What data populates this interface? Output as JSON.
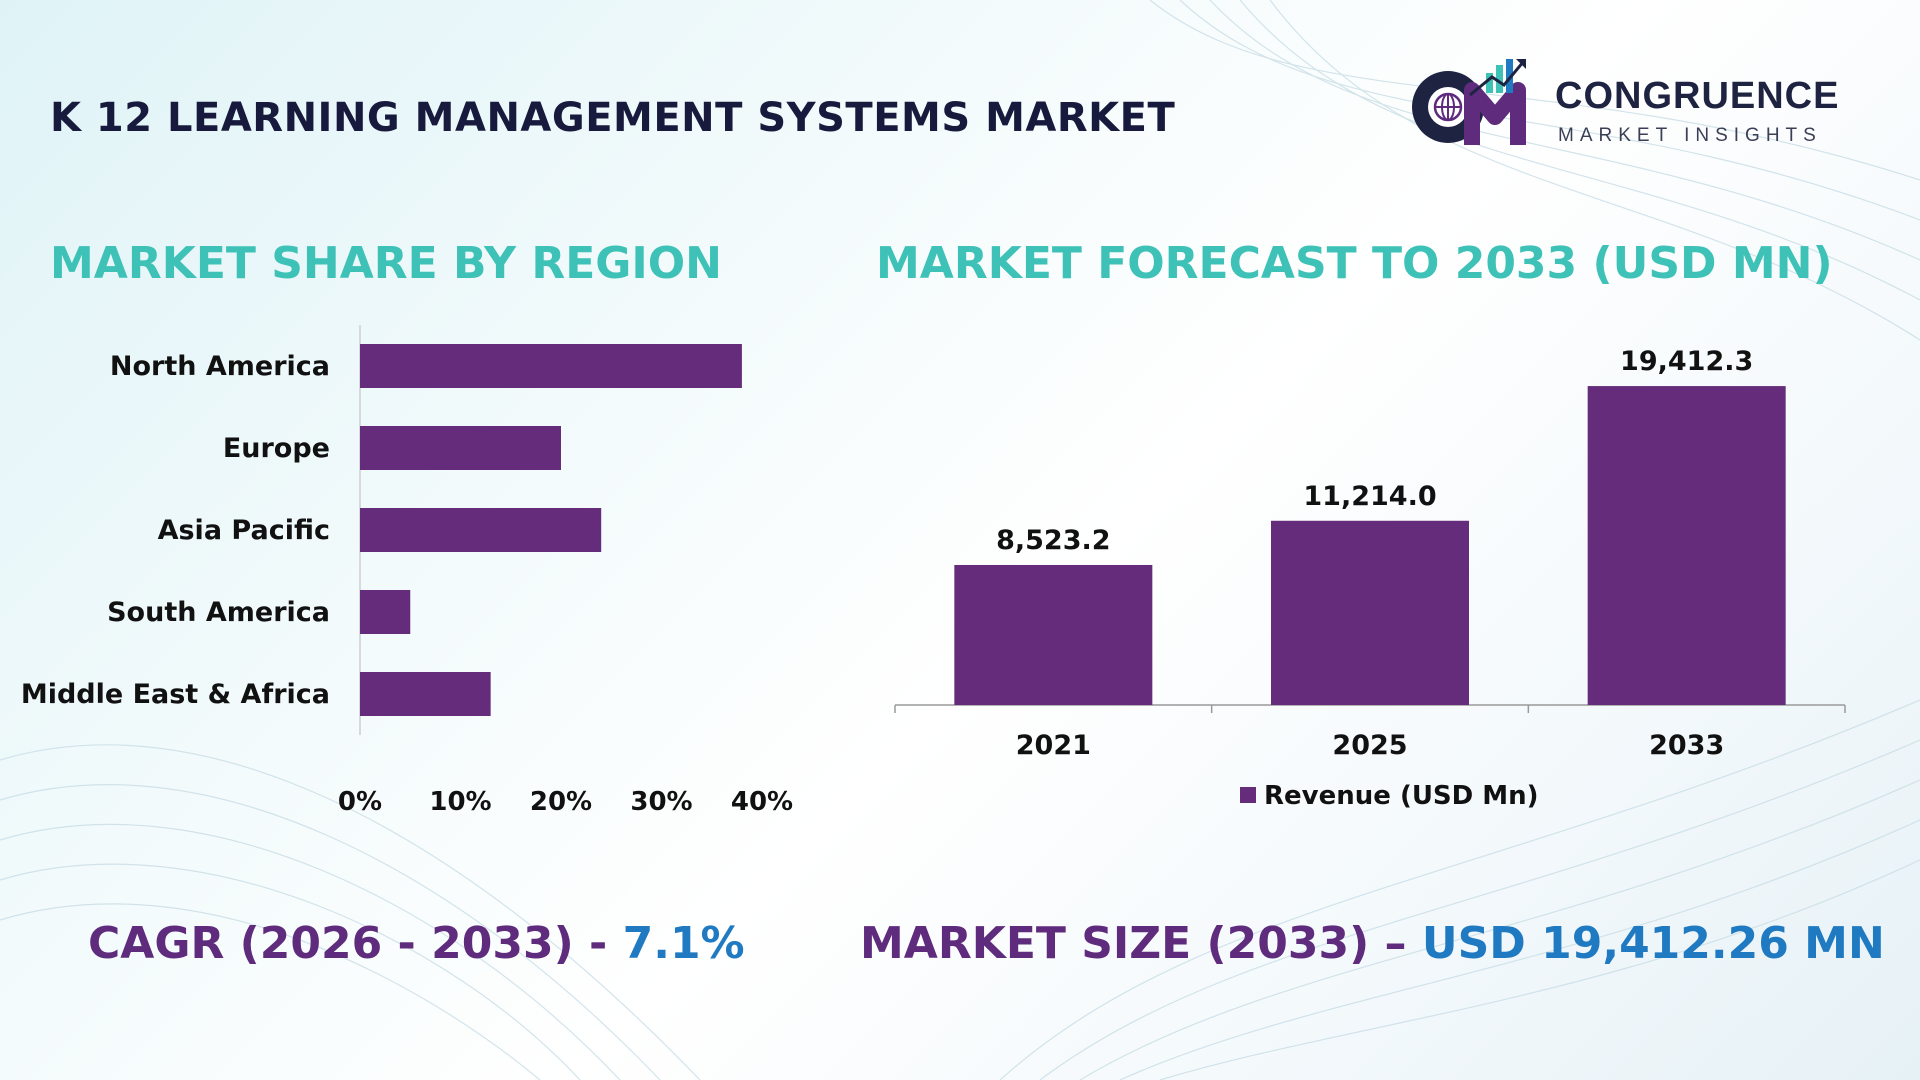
{
  "header": {
    "title": "K 12 LEARNING MANAGEMENT SYSTEMS MARKET",
    "logo": {
      "name": "CONGRUENCE",
      "tagline": "MARKET INSIGHTS",
      "mark_icon": "cm-logo-icon"
    }
  },
  "left_chart": {
    "heading": "MARKET SHARE BY REGION"
  },
  "right_chart": {
    "heading": "MARKET FORECAST TO 2033 (USD MN)"
  },
  "chart_data": [
    {
      "type": "bar",
      "orientation": "horizontal",
      "title": "MARKET SHARE BY REGION",
      "categories": [
        "North America",
        "Europe",
        "Asia Pacific",
        "South America",
        "Middle East & Africa"
      ],
      "values": [
        38,
        20,
        24,
        5,
        13
      ],
      "xlim": [
        0,
        40
      ],
      "ticks": [
        0,
        10,
        20,
        30,
        40
      ],
      "tick_labels": [
        "0%",
        "10%",
        "20%",
        "30%",
        "40%"
      ],
      "color": "#642c7a",
      "grid": false
    },
    {
      "type": "bar",
      "title": "MARKET FORECAST TO 2033 (USD MN)",
      "categories": [
        "2021",
        "2025",
        "2033"
      ],
      "series": [
        {
          "name": "Revenue (USD Mn)",
          "values": [
            8523.2,
            11214.0,
            19412.3
          ],
          "labels": [
            "8,523.2",
            "11,214.0",
            "19,412.3"
          ]
        }
      ],
      "ylim": [
        0,
        21000
      ],
      "color": "#642c7a",
      "legend": "bottom",
      "grid": false
    }
  ],
  "footer": {
    "cagr_label": "CAGR (2026 - 2033) - ",
    "cagr_value": "7.1%",
    "size_label": "MARKET SIZE (2033) – ",
    "size_value": "USD 19,412.26 MN"
  },
  "colors": {
    "bar": "#642c7a",
    "heading": "#3ec1b6",
    "stat_label": "#5e2b7d",
    "stat_value": "#1f7ac2",
    "title": "#171a3c"
  }
}
